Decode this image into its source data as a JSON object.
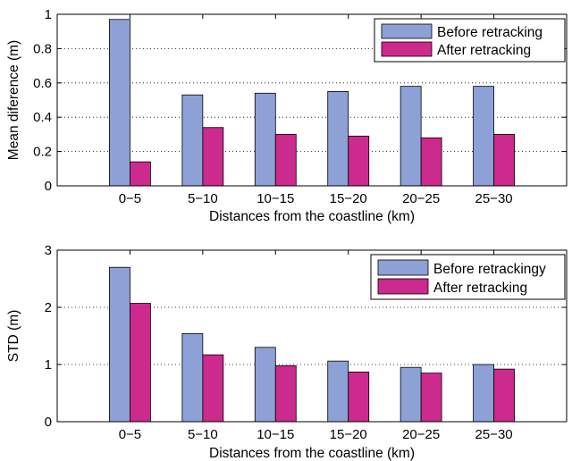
{
  "colors": {
    "before": "#8da1d6",
    "after": "#cc2a8c",
    "axis": "#000000",
    "grid": "#000000"
  },
  "chart_data": [
    {
      "type": "bar",
      "categories": [
        "0−5",
        "5−10",
        "10−15",
        "15−20",
        "20−25",
        "25−30"
      ],
      "series": [
        {
          "name": "Before retracking",
          "values": [
            0.97,
            0.53,
            0.54,
            0.55,
            0.58,
            0.58
          ]
        },
        {
          "name": "After retracking",
          "values": [
            0.14,
            0.34,
            0.3,
            0.29,
            0.28,
            0.3
          ]
        }
      ],
      "xlabel": "Distances from the coastline (km)",
      "ylabel": "Mean diference (m)",
      "ylim": [
        0,
        1
      ],
      "yticks": [
        0,
        0.2,
        0.4,
        0.6,
        0.8,
        1
      ],
      "ytick_labels": [
        "0",
        "0.2",
        "0.4",
        "0.6",
        "0.8",
        "1"
      ],
      "grid": "horizontal dotted",
      "legend": "top-right"
    },
    {
      "type": "bar",
      "categories": [
        "0−5",
        "5−10",
        "10−15",
        "15−20",
        "20−25",
        "25−30"
      ],
      "series": [
        {
          "name": "Before retrackingy",
          "values": [
            2.7,
            1.54,
            1.3,
            1.06,
            0.95,
            1.0
          ]
        },
        {
          "name": "After retracking",
          "values": [
            2.07,
            1.17,
            0.98,
            0.87,
            0.85,
            0.92
          ]
        }
      ],
      "xlabel": "Distances from the coastline (km)",
      "ylabel": "STD (m)",
      "ylim": [
        0,
        3
      ],
      "yticks": [
        0,
        1,
        2,
        3
      ],
      "ytick_labels": [
        "0",
        "1",
        "2",
        "3"
      ],
      "grid": "horizontal dotted",
      "legend": "top-right"
    }
  ]
}
